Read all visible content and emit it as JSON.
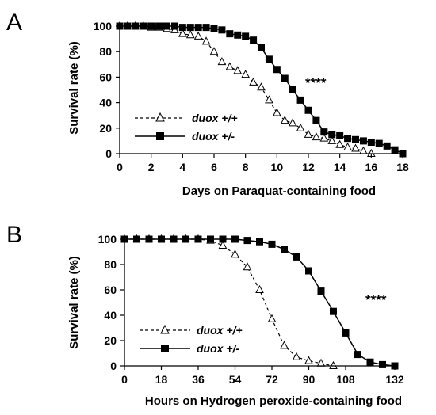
{
  "chart_data": [
    {
      "panel": "A",
      "type": "line",
      "xlabel": "Days on Paraquat-containing food",
      "ylabel": "Survival rate (%)",
      "xlim": [
        0,
        18
      ],
      "ylim": [
        0,
        100
      ],
      "xticks": [
        0,
        2,
        4,
        6,
        8,
        10,
        12,
        14,
        16,
        18
      ],
      "yticks": [
        0,
        20,
        40,
        60,
        80,
        100
      ],
      "legend": "lower-left",
      "annotation": "****",
      "series": [
        {
          "name": "duox +/+",
          "marker": "open-triangle",
          "line": "dashed",
          "x": [
            0,
            0.5,
            1,
            1.5,
            2,
            2.5,
            3,
            3.5,
            4,
            4.5,
            5,
            5.5,
            6,
            6.5,
            7,
            7.5,
            8,
            8.5,
            9,
            9.5,
            10,
            10.5,
            11,
            11.5,
            12,
            12.5,
            13,
            13.5,
            14,
            14.5,
            15,
            15.5,
            16
          ],
          "y": [
            100,
            100,
            100,
            100,
            99,
            99,
            98,
            97,
            94,
            93,
            92,
            88,
            80,
            72,
            68,
            65,
            62,
            56,
            52,
            42,
            32,
            26,
            24,
            20,
            15,
            13,
            12,
            10,
            7,
            5,
            4,
            2,
            0
          ]
        },
        {
          "name": "duox +/-",
          "marker": "filled-square",
          "line": "solid",
          "x": [
            0,
            0.5,
            1,
            1.5,
            2,
            2.5,
            3,
            3.5,
            4,
            4.5,
            5,
            5.5,
            6,
            6.5,
            7,
            7.5,
            8,
            8.5,
            9,
            9.5,
            10,
            10.5,
            11,
            11.5,
            12,
            12.5,
            13,
            13.5,
            14,
            14.5,
            15,
            15.5,
            16,
            16.5,
            17,
            17.5,
            18
          ],
          "y": [
            100,
            100,
            100,
            100,
            100,
            100,
            100,
            100,
            99,
            99,
            99,
            99,
            98,
            97,
            94,
            93,
            92,
            89,
            83,
            74,
            66,
            59,
            50,
            42,
            34,
            26,
            17,
            15,
            14,
            12,
            11,
            10,
            9,
            8,
            6,
            3,
            0
          ]
        }
      ]
    },
    {
      "panel": "B",
      "type": "line",
      "xlabel": "Hours on Hydrogen peroxide-containing food",
      "ylabel": "Survival rate (%)",
      "xlim": [
        0,
        132
      ],
      "ylim": [
        0,
        100
      ],
      "xticks": [
        0,
        18,
        36,
        54,
        72,
        90,
        108,
        132
      ],
      "yticks": [
        0,
        20,
        40,
        60,
        80,
        100
      ],
      "legend": "lower-left",
      "annotation": "****",
      "series": [
        {
          "name": "duox +/+",
          "marker": "open-triangle",
          "line": "dashed",
          "x": [
            0,
            6,
            12,
            18,
            24,
            30,
            36,
            42,
            48,
            54,
            60,
            66,
            72,
            78,
            84,
            90,
            96,
            102
          ],
          "y": [
            100,
            100,
            100,
            100,
            100,
            100,
            100,
            99,
            95,
            88,
            78,
            60,
            37,
            16,
            7,
            4,
            2,
            0
          ]
        },
        {
          "name": "duox +/-",
          "marker": "filled-square",
          "line": "solid",
          "x": [
            0,
            6,
            12,
            18,
            24,
            30,
            36,
            42,
            48,
            54,
            60,
            66,
            72,
            78,
            84,
            90,
            96,
            102,
            108,
            114,
            120,
            126,
            132
          ],
          "y": [
            100,
            100,
            100,
            100,
            100,
            100,
            100,
            100,
            100,
            100,
            99,
            98,
            96,
            92,
            86,
            75,
            59,
            43,
            26,
            9,
            3,
            1,
            0
          ]
        }
      ]
    }
  ]
}
